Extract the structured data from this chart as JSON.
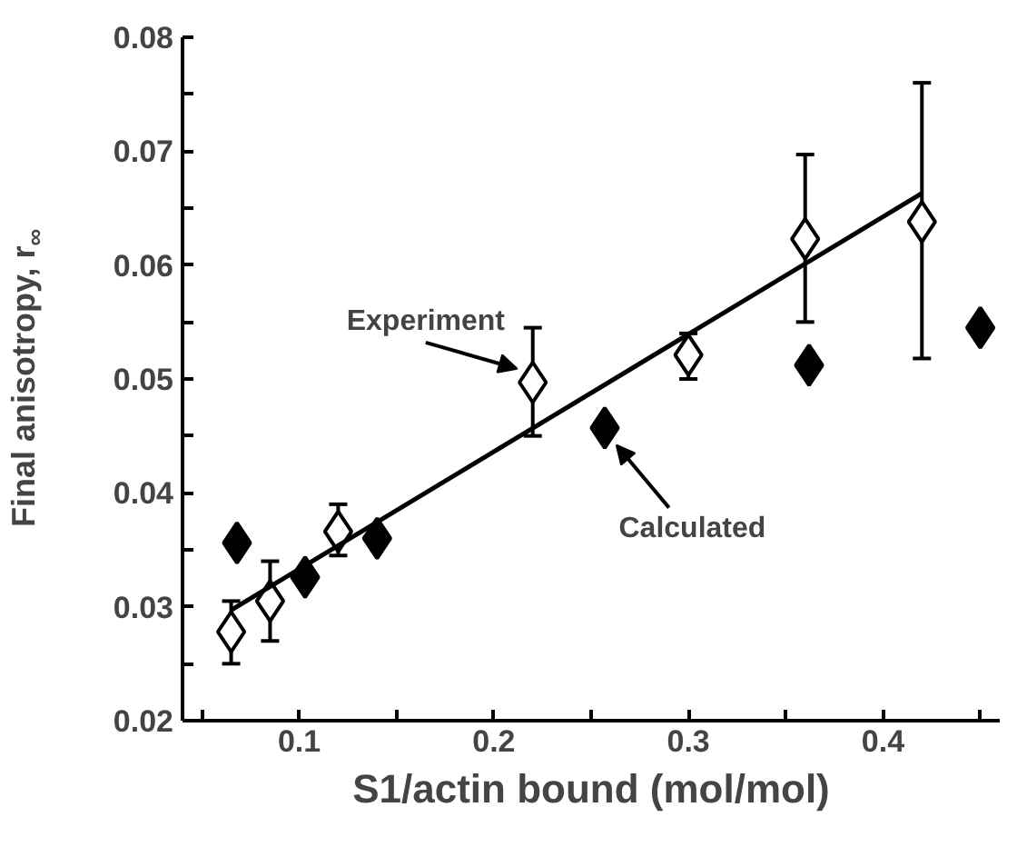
{
  "chart_data": {
    "type": "scatter",
    "xlabel": "S1/actin bound (mol/mol)",
    "ylabel": "Final anisotropy, r$_{∞}$",
    "xlim": [
      0.04,
      0.46
    ],
    "ylim": [
      0.02,
      0.08
    ],
    "xticks": [
      {
        "value": 0.05,
        "label": null
      },
      0.1,
      {
        "value": 0.15,
        "label": null
      },
      0.2,
      {
        "value": 0.25,
        "label": null
      },
      0.3,
      {
        "value": 0.35,
        "label": null
      },
      0.4,
      {
        "value": 0.45,
        "label": null
      }
    ],
    "yticks": [
      0.02,
      {
        "value": 0.025,
        "label": null
      },
      0.03,
      {
        "value": 0.035,
        "label": null
      },
      0.04,
      {
        "value": 0.045,
        "label": null
      },
      0.05,
      {
        "value": 0.055,
        "label": null
      },
      0.06,
      {
        "value": 0.065,
        "label": null
      },
      0.07,
      {
        "value": 0.075,
        "label": null
      },
      0.08
    ],
    "grid": false,
    "series": [
      {
        "type": "scatter",
        "marker": "diamond",
        "color": "#ffffff",
        "x": [
          0.065,
          0.085,
          0.12,
          0.22,
          0.3,
          0.36,
          0.42
        ],
        "values": [
          0.0278,
          0.0305,
          0.0366,
          0.0497,
          0.0521,
          0.0623,
          0.0638
        ],
        "errors": [
          [
            0.025,
            0.0305
          ],
          [
            0.027,
            0.034
          ],
          [
            0.0345,
            0.039
          ],
          [
            0.045,
            0.0545
          ],
          [
            0.05,
            0.054
          ],
          [
            0.055,
            0.0697
          ],
          [
            0.0518,
            0.076
          ]
        ]
      },
      {
        "type": "scatter",
        "marker": "diamond",
        "color": "#000000",
        "x": [
          0.068,
          0.103,
          0.14,
          0.257,
          0.362,
          0.45
        ],
        "values": [
          0.0356,
          0.0326,
          0.036,
          0.0457,
          0.0512,
          0.0545
        ]
      },
      {
        "type": "line",
        "line_style": "solid",
        "color": "#000000",
        "x": [
          0.065,
          0.42
        ],
        "values": [
          0.0297,
          0.0663
        ]
      }
    ],
    "annotations": [
      {
        "text": "Experiment",
        "x": 0.22,
        "y": 0.0497
      },
      {
        "text": "Calculated",
        "x": 0.257,
        "y": 0.0457
      }
    ]
  }
}
